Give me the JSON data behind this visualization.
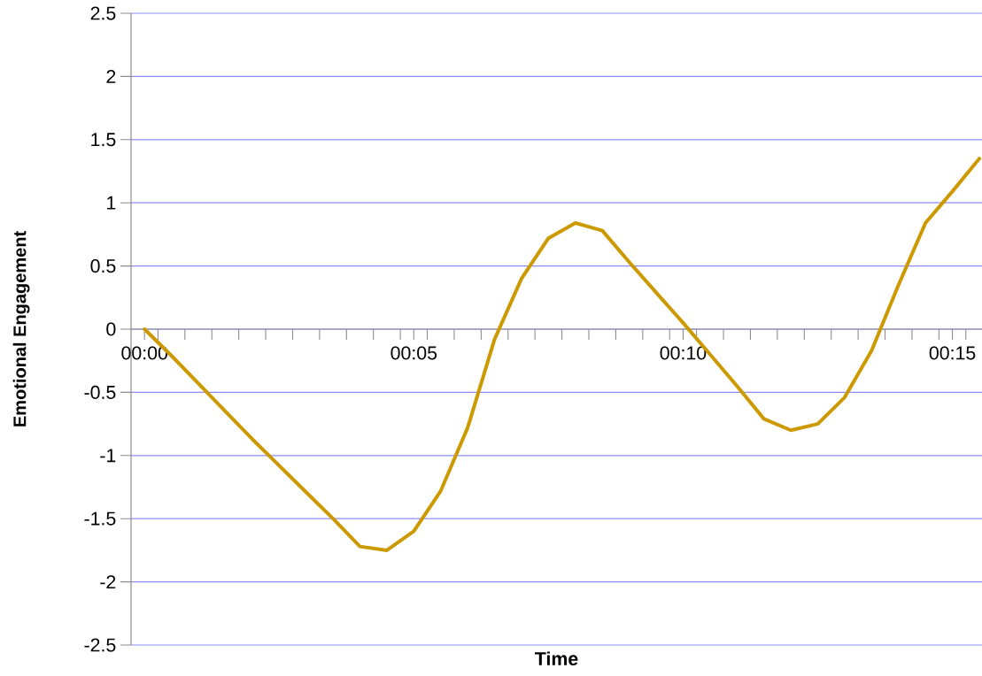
{
  "chart_data": {
    "type": "line",
    "xlabel": "Time",
    "ylabel": "Emotional Engagement",
    "x": [
      0,
      0.5,
      1,
      1.5,
      2,
      2.5,
      3,
      3.5,
      4,
      4.5,
      5,
      5.5,
      6,
      6.5,
      7,
      7.5,
      8,
      8.5,
      9,
      9.5,
      10,
      10.5,
      11,
      11.5,
      12,
      12.5,
      13,
      13.5,
      14,
      14.5,
      15,
      15.5
    ],
    "series": [
      {
        "color": "#cc9900",
        "values": [
          0,
          -0.21,
          -0.43,
          -0.65,
          -0.87,
          -1.08,
          -1.29,
          -1.5,
          -1.72,
          -1.75,
          -1.6,
          -1.28,
          -0.78,
          -0.08,
          0.4,
          0.72,
          0.84,
          0.78,
          0.53,
          0.29,
          0.05,
          -0.2,
          -0.45,
          -0.71,
          -0.8,
          -0.75,
          -0.54,
          -0.17,
          0.35,
          0.84,
          1.09,
          1.35
        ]
      }
    ],
    "xlim": [
      -0.25,
      15.55
    ],
    "xticks": [
      {
        "value": 0,
        "label": "00:00"
      },
      {
        "value": 5,
        "label": "00:05"
      },
      {
        "value": 10,
        "label": "00:10"
      },
      {
        "value": 15,
        "label": "00:15"
      },
      {
        "value": 0.25,
        "label": null
      },
      {
        "value": 0.75,
        "label": null
      },
      {
        "value": 1.25,
        "label": null
      },
      {
        "value": 1.75,
        "label": null
      },
      {
        "value": 2.25,
        "label": null
      },
      {
        "value": 2.75,
        "label": null
      },
      {
        "value": 3.25,
        "label": null
      },
      {
        "value": 3.75,
        "label": null
      },
      {
        "value": 4.25,
        "label": null
      },
      {
        "value": 4.75,
        "label": null
      },
      {
        "value": 5.25,
        "label": null
      },
      {
        "value": 5.75,
        "label": null
      },
      {
        "value": 6.25,
        "label": null
      },
      {
        "value": 6.75,
        "label": null
      },
      {
        "value": 7.25,
        "label": null
      },
      {
        "value": 7.75,
        "label": null
      },
      {
        "value": 8.25,
        "label": null
      },
      {
        "value": 8.75,
        "label": null
      },
      {
        "value": 9.25,
        "label": null
      },
      {
        "value": 9.75,
        "label": null
      },
      {
        "value": 10.25,
        "label": null
      },
      {
        "value": 10.75,
        "label": null
      },
      {
        "value": 11.25,
        "label": null
      },
      {
        "value": 11.75,
        "label": null
      },
      {
        "value": 12.25,
        "label": null
      },
      {
        "value": 12.75,
        "label": null
      },
      {
        "value": 13.25,
        "label": null
      },
      {
        "value": 13.75,
        "label": null
      },
      {
        "value": 14.25,
        "label": null
      },
      {
        "value": 14.75,
        "label": null
      },
      {
        "value": 15.25,
        "label": null
      }
    ],
    "ylim": [
      -2.5,
      2.5
    ],
    "yticks": [
      -2.5,
      -2,
      -1.5,
      -1,
      -0.5,
      0,
      0.5,
      1,
      1.5,
      2,
      2.5
    ],
    "grid": "y",
    "line_style": "solid",
    "marker": "none"
  }
}
